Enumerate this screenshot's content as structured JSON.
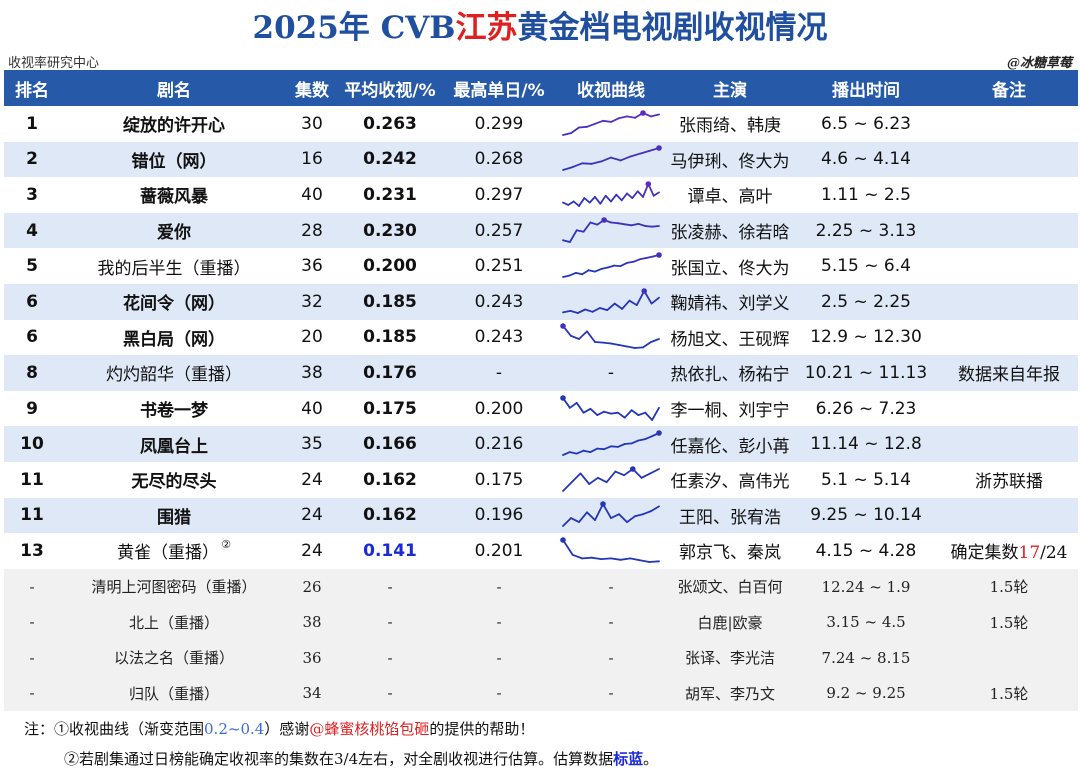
{
  "title": {
    "part1": "2025年 CVB",
    "part2": "江苏",
    "part3": "黄金档电视剧收视情况"
  },
  "source": "收视率研究中心",
  "author": "@冰糖草莓",
  "headers": [
    "排名",
    "剧名",
    "集数",
    "平均收视/%",
    "最高单日/%",
    "收视曲线",
    "主演",
    "播出时间",
    "备注"
  ],
  "chart_data": {
    "type": "table",
    "columns": [
      "排名",
      "剧名",
      "集数",
      "平均收视/%",
      "最高单日/%",
      "收视曲线",
      "主演",
      "播出时间",
      "备注"
    ],
    "rows": [
      {
        "rank": "1",
        "name": "绽放的许开心",
        "ep": "30",
        "avg": "0.263",
        "max": "0.299",
        "cast": "张雨绮、韩庚",
        "time": "6.5 ~ 6.23",
        "note": "",
        "spark": [
          0.24,
          0.245,
          0.26,
          0.262,
          0.27,
          0.278,
          0.275,
          0.285,
          0.29,
          0.286,
          0.299,
          0.29,
          0.295
        ]
      },
      {
        "rank": "2",
        "name": "错位（网）",
        "ep": "16",
        "avg": "0.242",
        "max": "0.268",
        "cast": "马伊琍、佟大为",
        "time": "4.6 ~ 4.14",
        "note": "",
        "spark": [
          0.222,
          0.228,
          0.236,
          0.235,
          0.24,
          0.248,
          0.242,
          0.25,
          0.256,
          0.262,
          0.268
        ]
      },
      {
        "rank": "3",
        "name": "蔷薇风暴",
        "ep": "40",
        "avg": "0.231",
        "max": "0.297",
        "cast": "谭卓、高叶",
        "time": "1.11 ~ 2.5",
        "note": "",
        "spark": [
          0.215,
          0.205,
          0.22,
          0.2,
          0.235,
          0.215,
          0.24,
          0.21,
          0.245,
          0.22,
          0.25,
          0.225,
          0.255,
          0.235,
          0.265,
          0.24,
          0.297,
          0.245,
          0.26
        ]
      },
      {
        "rank": "4",
        "name": "爱你",
        "ep": "28",
        "avg": "0.230",
        "max": "0.257",
        "cast": "张凌赫、徐若晗",
        "time": "2.25 ~ 3.13",
        "note": "",
        "spark": [
          0.2,
          0.195,
          0.228,
          0.224,
          0.25,
          0.244,
          0.257,
          0.25,
          0.248,
          0.245,
          0.242,
          0.246,
          0.24,
          0.238,
          0.24
        ]
      },
      {
        "rank": "5",
        "name": "我的后半生（重播）",
        "ep": "36",
        "avg": "0.200",
        "max": "0.251",
        "cast": "张国立、佟大为",
        "time": "5.15 ~ 6.4",
        "note": "",
        "spark": [
          0.17,
          0.175,
          0.185,
          0.18,
          0.195,
          0.19,
          0.2,
          0.205,
          0.212,
          0.21,
          0.222,
          0.226,
          0.235,
          0.24,
          0.245,
          0.251
        ]
      },
      {
        "rank": "6",
        "name": "花间令（网）",
        "ep": "32",
        "avg": "0.185",
        "max": "0.243",
        "cast": "鞠婧祎、刘学义",
        "time": "2.5 ~ 2.25",
        "note": "",
        "spark": [
          0.17,
          0.175,
          0.168,
          0.18,
          0.172,
          0.185,
          0.178,
          0.2,
          0.182,
          0.21,
          0.195,
          0.243,
          0.2,
          0.22
        ]
      },
      {
        "rank": "6",
        "name": "黑白局（网）",
        "ep": "20",
        "avg": "0.185",
        "max": "0.243",
        "cast": "杨旭文、王砚辉",
        "time": "12.9 ~ 12.30",
        "note": "",
        "spark": [
          0.243,
          0.21,
          0.2,
          0.225,
          0.19,
          0.188,
          0.185,
          0.18,
          0.175,
          0.17,
          0.172,
          0.19,
          0.2
        ]
      },
      {
        "rank": "8",
        "name": "灼灼韶华（重播）",
        "ep": "38",
        "avg": "0.176",
        "max": "-",
        "cast": "热依扎、杨祐宁",
        "time": "10.21 ~ 11.13",
        "note": "数据来自年报",
        "spark": []
      },
      {
        "rank": "9",
        "name": "书卷一梦",
        "ep": "40",
        "avg": "0.175",
        "max": "0.200",
        "cast": "李一桐、刘宇宁",
        "time": "6.26 ~ 7.23",
        "note": "",
        "spark": [
          0.2,
          0.18,
          0.19,
          0.17,
          0.178,
          0.165,
          0.172,
          0.168,
          0.17,
          0.16,
          0.175,
          0.165,
          0.17,
          0.155,
          0.18
        ]
      },
      {
        "rank": "10",
        "name": "凤凰台上",
        "ep": "35",
        "avg": "0.166",
        "max": "0.216",
        "cast": "任嘉伦、彭小苒",
        "time": "11.14 ~ 12.8",
        "note": "",
        "spark": [
          0.14,
          0.15,
          0.145,
          0.155,
          0.15,
          0.162,
          0.16,
          0.17,
          0.168,
          0.178,
          0.18,
          0.19,
          0.195,
          0.205,
          0.216
        ]
      },
      {
        "rank": "11",
        "name": "无尽的尽头",
        "ep": "24",
        "avg": "0.162",
        "max": "0.175",
        "cast": "任素汐、高伟光",
        "time": "5.1 ~ 5.14",
        "note": "浙苏联播",
        "spark": [
          0.15,
          0.16,
          0.17,
          0.158,
          0.165,
          0.16,
          0.172,
          0.168,
          0.175,
          0.165,
          0.17,
          0.175
        ]
      },
      {
        "rank": "11",
        "name": "围猎",
        "ep": "24",
        "avg": "0.162",
        "max": "0.196",
        "cast": "王阳、张宥浩",
        "time": "9.25 ~ 10.14",
        "note": "",
        "spark": [
          0.14,
          0.16,
          0.15,
          0.175,
          0.155,
          0.196,
          0.16,
          0.17,
          0.15,
          0.165,
          0.17,
          0.178,
          0.19
        ]
      },
      {
        "rank": "13",
        "name": "黄雀（重播）",
        "ep": "24",
        "avg": "0.141",
        "max": "0.201",
        "cast": "郭京飞、秦岚",
        "time": "4.15 ~ 4.28",
        "note_pre": "确定集数",
        "note_hl": "17",
        "note_post": "/24",
        "sup": "②",
        "estimated": true,
        "spark": [
          0.201,
          0.16,
          0.15,
          0.152,
          0.148,
          0.15,
          0.146,
          0.15,
          0.145,
          0.14,
          0.142
        ]
      }
    ],
    "rerun_rows": [
      {
        "rank": "-",
        "name": "清明上河图密码（重播）",
        "ep": "26",
        "avg": "-",
        "max": "-",
        "curve": "-",
        "cast": "张颂文、白百何",
        "time": "12.24 ~ 1.9",
        "note": "1.5轮"
      },
      {
        "rank": "-",
        "name": "北上（重播）",
        "ep": "38",
        "avg": "-",
        "max": "-",
        "curve": "-",
        "cast": "白鹿|欧豪",
        "time": "3.15 ~ 4.5",
        "note": "1.5轮"
      },
      {
        "rank": "-",
        "name": "以法之名（重播）",
        "ep": "36",
        "avg": "-",
        "max": "-",
        "curve": "-",
        "cast": "张译、李光洁",
        "time": "7.24 ~ 8.15",
        "note": ""
      },
      {
        "rank": "-",
        "name": "归队（重播）",
        "ep": "34",
        "avg": "-",
        "max": "-",
        "curve": "-",
        "cast": "胡军、李乃文",
        "time": "9.2 ~ 9.25",
        "note": "1.5轮"
      }
    ],
    "spark_range": [
      0.2,
      0.4
    ],
    "spark_colors": {
      "low": "#2336b8",
      "high": "#9b22c7"
    }
  },
  "notes": {
    "n1_a": "注：①收视曲线（渐变范围",
    "n1_b": "0.2~0.4",
    "n1_c": "）感谢",
    "n1_d": "@蜂蜜核桃馅包砸",
    "n1_e": "的提供的帮助！",
    "n2_a": "②若剧集通过日榜能确定收视率的集数在3/4左右，对全剧收视进行估算。估算数据",
    "n2_b": "标蓝",
    "n2_c": "。"
  }
}
